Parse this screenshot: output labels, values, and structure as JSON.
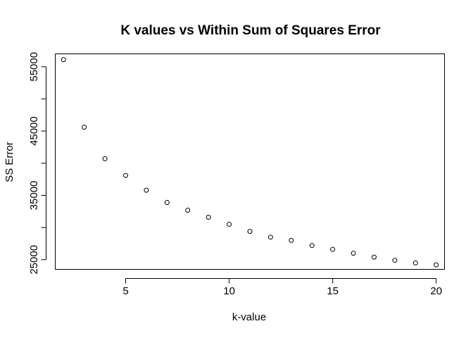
{
  "chart_data": {
    "type": "scatter",
    "title": "K values vs Within Sum of Squares Error",
    "xlabel": "k-value",
    "ylabel": "SS Error",
    "xlim": [
      1.6,
      20.4
    ],
    "ylim": [
      23500,
      57000
    ],
    "xticks": [
      5,
      10,
      15,
      20
    ],
    "yticks": [
      25000,
      35000,
      45000,
      55000
    ],
    "grid": false,
    "x": [
      2,
      3,
      4,
      5,
      6,
      7,
      8,
      9,
      10,
      11,
      12,
      13,
      14,
      15,
      16,
      17,
      18,
      19,
      20
    ],
    "y": [
      56100,
      45600,
      40700,
      38100,
      35800,
      33900,
      32700,
      31600,
      30500,
      29400,
      28500,
      28000,
      27200,
      26600,
      26000,
      25400,
      24900,
      24500,
      24200
    ]
  }
}
